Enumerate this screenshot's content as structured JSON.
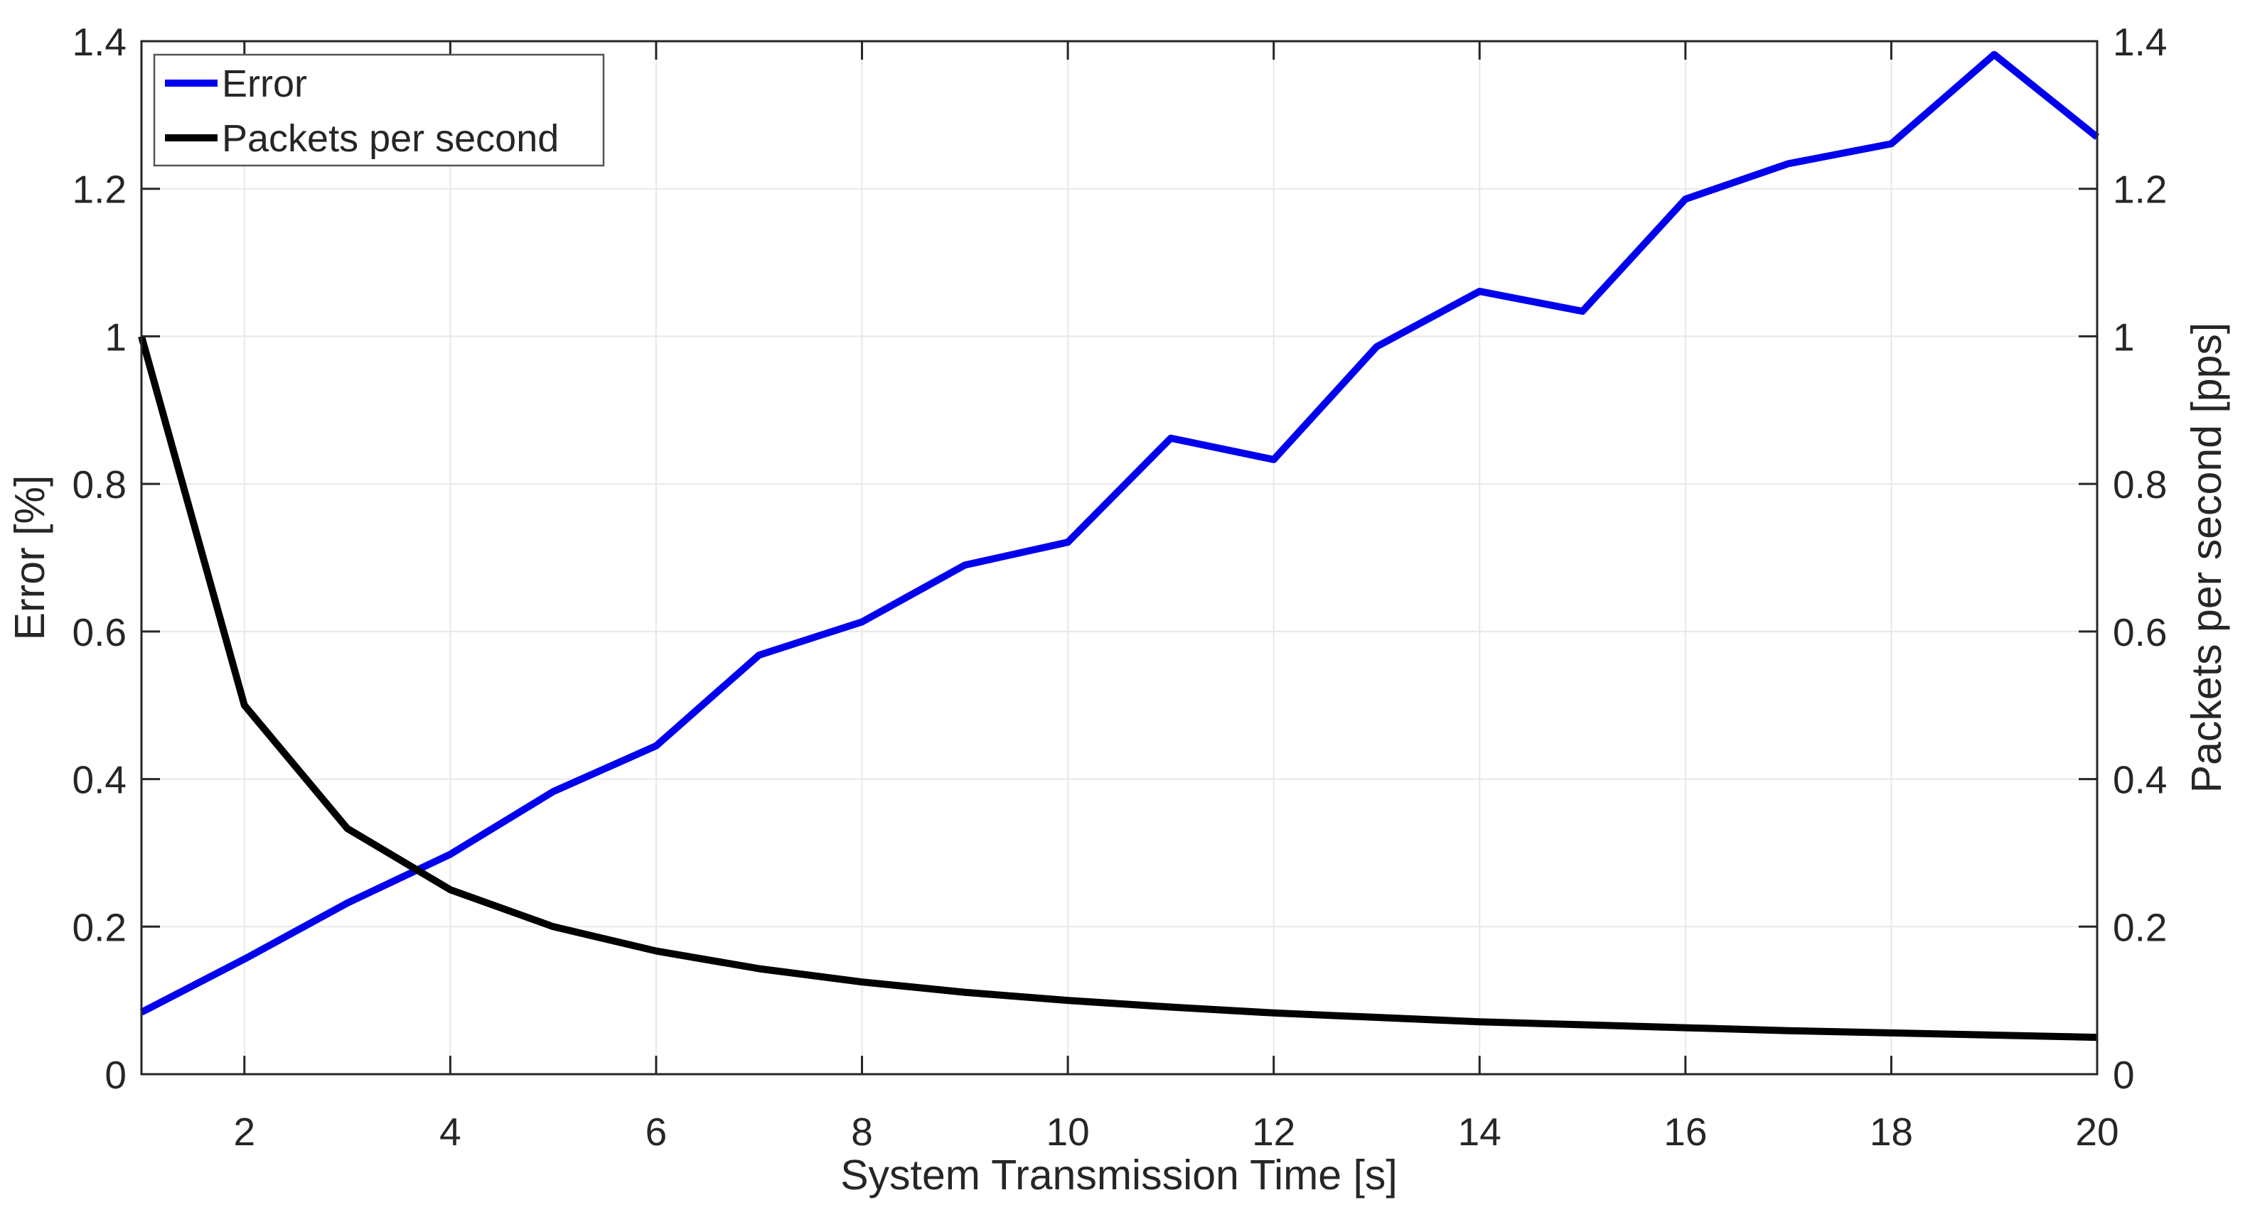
{
  "chart_data": {
    "type": "line",
    "title": "",
    "xlabel": "System Transmission Time [s]",
    "ylabel_left": "Error [%]",
    "ylabel_right": "Packets per second [pps]",
    "xlim": [
      1,
      20
    ],
    "ylim_left": [
      0,
      1.4
    ],
    "ylim_right": [
      0,
      1.4
    ],
    "grid": true,
    "legend_position": "top-left",
    "x_ticks": [
      2,
      4,
      6,
      8,
      10,
      12,
      14,
      16,
      18,
      20
    ],
    "x_tick_labels": [
      "2",
      "4",
      "6",
      "8",
      "10",
      "12",
      "14",
      "16",
      "18",
      "20"
    ],
    "y_ticks": [
      0,
      0.2,
      0.4,
      0.6,
      0.8,
      1,
      1.2,
      1.4
    ],
    "y_tick_labels": [
      "0",
      "0.2",
      "0.4",
      "0.6",
      "0.8",
      "1",
      "1.2",
      "1.4"
    ],
    "x": [
      1,
      2,
      3,
      4,
      5,
      6,
      7,
      8,
      9,
      10,
      11,
      12,
      13,
      14,
      15,
      16,
      17,
      18,
      19,
      20
    ],
    "series": [
      {
        "name": "Error",
        "axis": "left",
        "color": "#0000ee",
        "values": [
          0.084,
          0.156,
          0.232,
          0.298,
          0.383,
          0.445,
          0.568,
          0.613,
          0.69,
          0.721,
          0.862,
          0.833,
          0.986,
          1.061,
          1.034,
          1.186,
          1.234,
          1.261,
          1.382,
          1.27
        ]
      },
      {
        "name": "Packets per second",
        "axis": "right",
        "color": "#000000",
        "values": [
          1,
          0.5,
          0.333,
          0.25,
          0.2,
          0.167,
          0.143,
          0.125,
          0.111,
          0.1,
          0.091,
          0.083,
          0.077,
          0.071,
          0.067,
          0.063,
          0.059,
          0.056,
          0.053,
          0.05
        ]
      }
    ]
  },
  "colors": {
    "grid": "#e8e8e8",
    "frame": "#262626",
    "background": "#ffffff",
    "legend_border": "#545454",
    "error_line": "#0000ee",
    "pps_line": "#000000"
  }
}
